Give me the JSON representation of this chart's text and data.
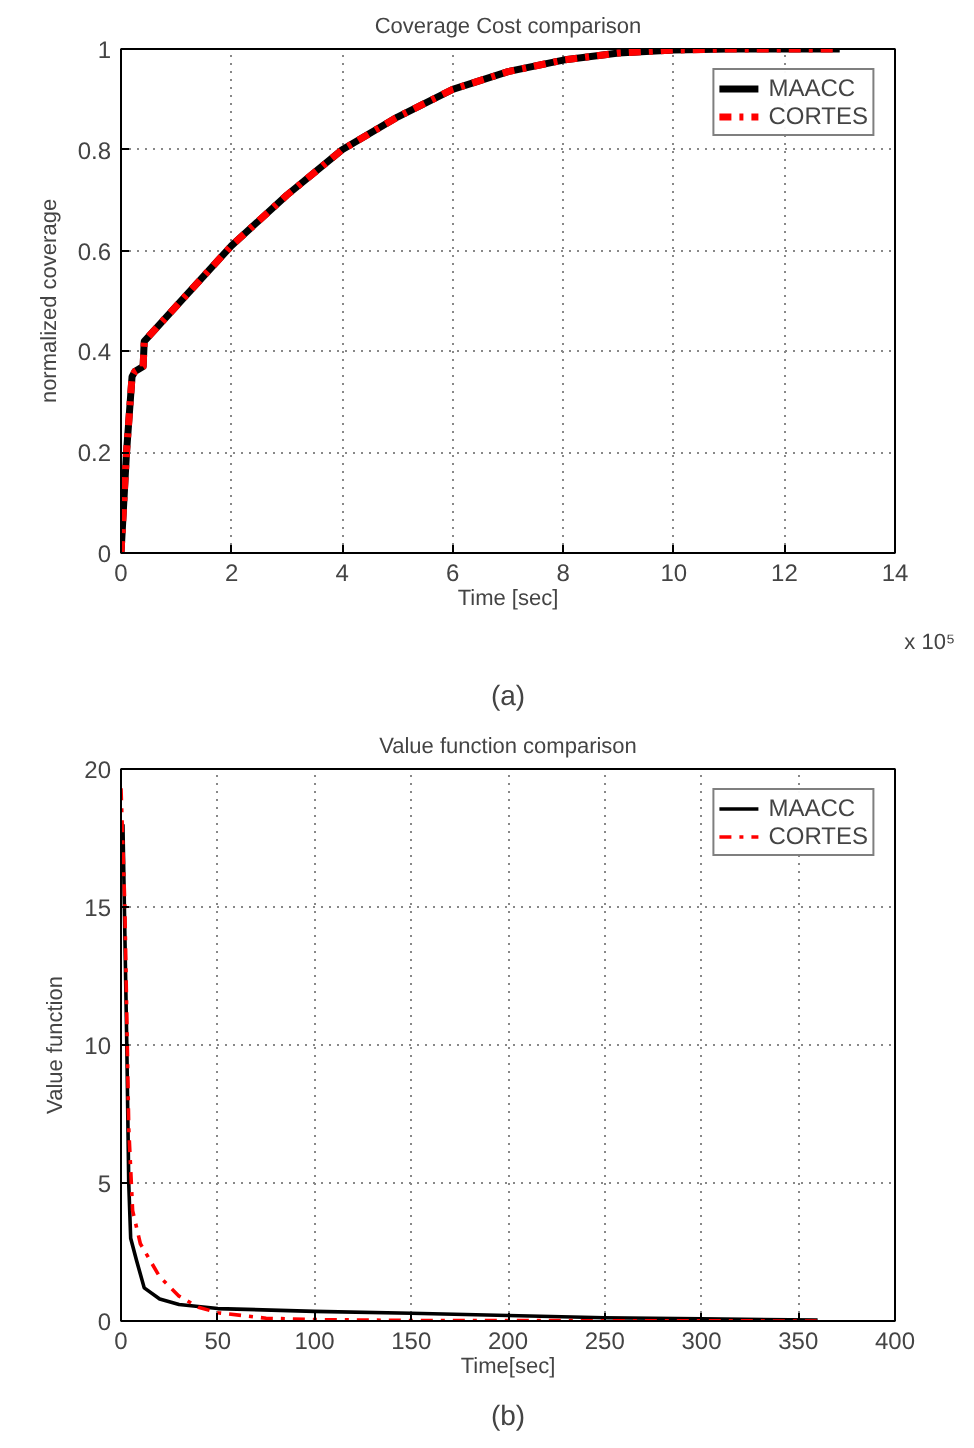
{
  "chart_data": [
    {
      "type": "line",
      "title": "Coverage Cost comparison",
      "xlabel": "Time [sec]",
      "ylabel": "normalized coverage",
      "annotations": [
        "x 10⁵",
        "(a)"
      ],
      "xlim": [
        0,
        14
      ],
      "ylim": [
        0,
        1
      ],
      "xticks": [
        0,
        2,
        4,
        6,
        8,
        10,
        12,
        14
      ],
      "yticks": [
        0,
        0.2,
        0.4,
        0.6,
        0.8,
        1
      ],
      "grid": true,
      "legend": "top right",
      "series": [
        {
          "name": "MAACC",
          "color": "#000000",
          "line_style": "solid",
          "x": [
            0,
            0.1,
            0.2,
            0.25,
            0.4,
            0.42,
            1,
            2,
            3,
            4,
            5,
            6,
            7,
            8,
            9,
            10,
            11,
            13
          ],
          "values": [
            0,
            0.2,
            0.35,
            0.36,
            0.37,
            0.42,
            0.49,
            0.61,
            0.71,
            0.8,
            0.865,
            0.92,
            0.955,
            0.978,
            0.992,
            0.998,
            1,
            1
          ]
        },
        {
          "name": "CORTES",
          "color": "#ff0000",
          "line_style": "dashed",
          "x": [
            0,
            0.1,
            0.2,
            0.25,
            0.4,
            0.42,
            1,
            2,
            3,
            4,
            5,
            6,
            7,
            8,
            9,
            10,
            11,
            13
          ],
          "values": [
            0,
            0.2,
            0.35,
            0.36,
            0.37,
            0.42,
            0.49,
            0.61,
            0.71,
            0.8,
            0.865,
            0.92,
            0.955,
            0.978,
            0.992,
            0.998,
            1,
            1
          ]
        }
      ]
    },
    {
      "type": "line",
      "title": "Value function comparison",
      "xlabel": "Time[sec]",
      "ylabel": "Value function",
      "annotations": [
        "(b)"
      ],
      "xlim": [
        0,
        400
      ],
      "ylim": [
        0,
        20
      ],
      "xticks": [
        0,
        50,
        100,
        150,
        200,
        250,
        300,
        350,
        400
      ],
      "yticks": [
        0,
        5,
        10,
        15,
        20
      ],
      "grid": true,
      "legend": "top right",
      "series": [
        {
          "name": "MAACC",
          "color": "#000000",
          "line_style": "solid",
          "x": [
            1,
            3,
            4,
            5,
            8,
            12,
            20,
            30,
            50,
            100,
            150,
            200,
            250,
            300,
            360
          ],
          "values": [
            18,
            10,
            5,
            3,
            2.2,
            1.2,
            0.8,
            0.6,
            0.45,
            0.35,
            0.28,
            0.2,
            0.12,
            0.08,
            0.03
          ]
        },
        {
          "name": "CORTES",
          "color": "#ff0000",
          "line_style": "dashed",
          "x": [
            0,
            2,
            4,
            6,
            10,
            20,
            30,
            40,
            50,
            75,
            100,
            150,
            360
          ],
          "values": [
            19.3,
            15,
            7,
            4,
            2.8,
            1.6,
            0.9,
            0.5,
            0.3,
            0.1,
            0.05,
            0.02,
            0
          ]
        }
      ]
    }
  ]
}
